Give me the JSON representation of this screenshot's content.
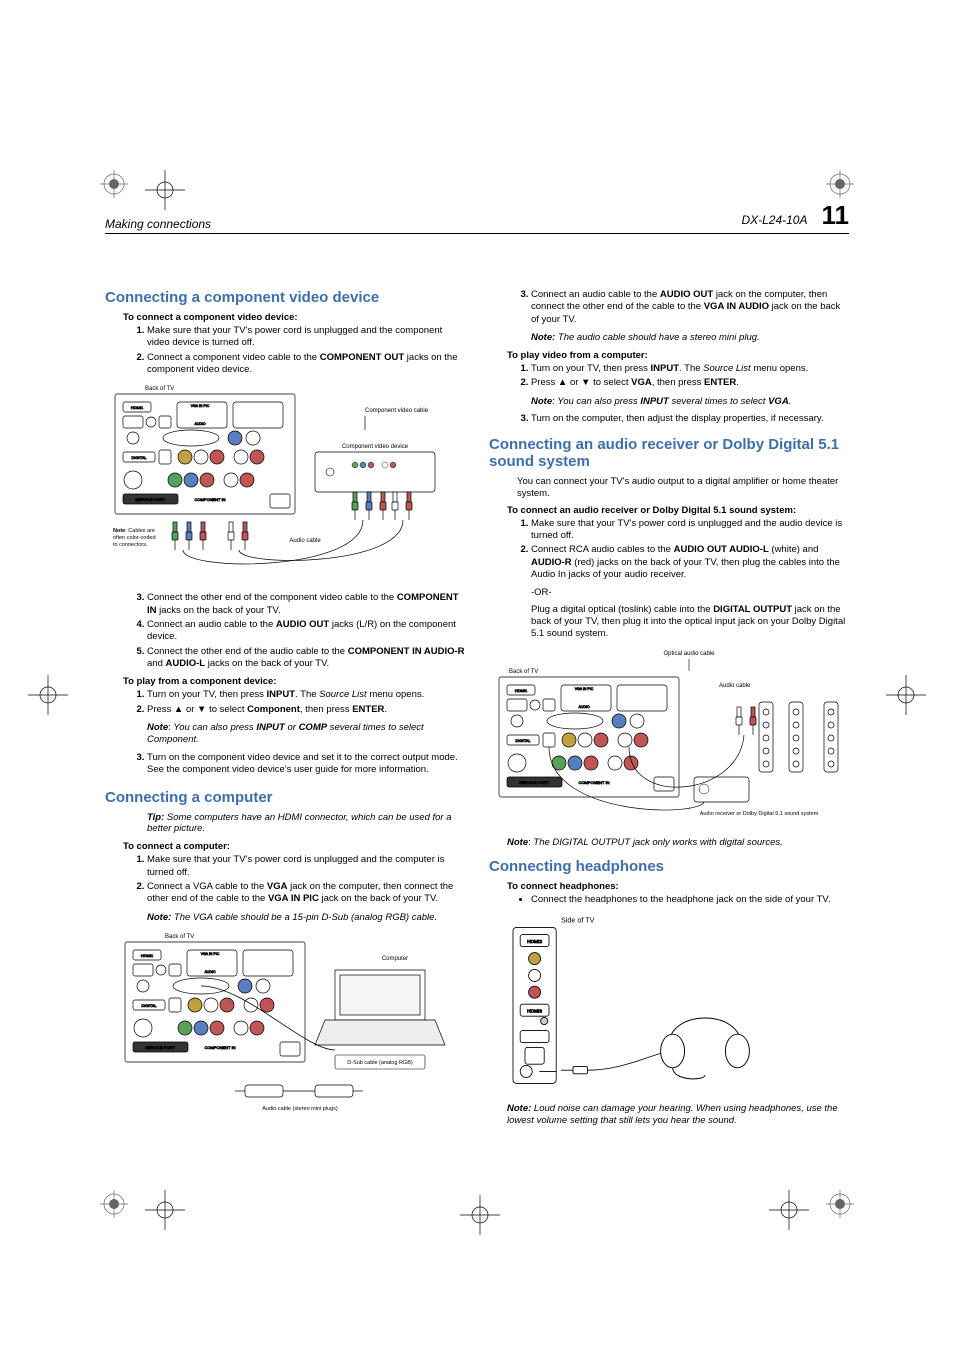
{
  "header": {
    "left": "Making connections",
    "model": "DX-L24-10A",
    "page": "11"
  },
  "left": {
    "h_component": "Connecting a component video device",
    "lead_component": "To connect a component video device:",
    "steps1": [
      "Make sure that your TV's power cord is unplugged and the component video device is turned off.",
      "Connect a component video cable to the <b>COMPONENT OUT</b> jacks on the component video device."
    ],
    "fig1_labels": {
      "back": "Back of TV",
      "cable": "Component video cable",
      "device": "Component video device",
      "note": "Note: Cables are often color-coded to connectors.",
      "audio": "Audio cable"
    },
    "steps2": [
      "Connect the other end of the component video cable to the <b>COMPONENT IN</b> jacks on the back of your TV.",
      "Connect an audio cable to the <b>AUDIO OUT</b> jacks (L/R) on the component device.",
      "Connect the other end of the audio cable to the <b>COMPONENT IN AUDIO-R</b> and <b>AUDIO-L</b> jacks on the back of your TV."
    ],
    "lead_play": "To play from a component device:",
    "steps3": [
      "Turn on your TV, then press <b>INPUT</b>. The <i>Source List</i> menu opens.",
      "Press ▲ or ▼ to select <b>Component</b>, then press <b>ENTER</b>."
    ],
    "note_comp": "You can also press <b>INPUT</b> or <b>COMP</b> several times to select Component.",
    "steps3b": [
      "Turn on the component video device and set it to the correct output mode. See the component video device's user guide for more information."
    ],
    "h_computer": "Connecting a computer",
    "tip_computer": "Some computers have an HDMI connector, which can be used for a better picture.",
    "lead_computer": "To connect a computer:",
    "steps4": [
      "Make sure that your TV's power cord is unplugged and the computer is turned off.",
      "Connect a VGA cable to the <b>VGA</b> jack on the computer, then connect the other end of the cable to the <b>VGA IN PIC</b> jack on the back of your TV."
    ],
    "note_vga": "The VGA cable should be a 15-pin D-Sub (analog RGB) cable.",
    "fig2_labels": {
      "back": "Back of TV",
      "computer": "Computer",
      "dsub": "D-Sub cable (analog RGB)",
      "audio": "Audio cable (stereo mini plugs)"
    }
  },
  "right": {
    "steps_top": [
      "Connect an audio cable to the <b>AUDIO OUT</b> jack on the computer, then connect the other end of the cable to the <b>VGA IN AUDIO</b> jack on the back of your TV."
    ],
    "note_audio": "The audio cable should have a stereo mini plug.",
    "lead_play_comp": "To play video from a computer:",
    "steps_play": [
      "Turn on your TV, then press <b>INPUT</b>. The <i>Source List</i> menu opens.",
      "Press ▲ or ▼ to select <b>VGA</b>, then press <b>ENTER</b>."
    ],
    "note_vga_sel": "You can also press <b>INPUT</b> several times to select <b>VGA</b>.",
    "steps_play2": [
      "Turn on the computer, then adjust the display properties, if necessary."
    ],
    "h_dolby": "Connecting an audio receiver or Dolby Digital 5.1 sound system",
    "para_dolby": "You can connect your TV's audio output to a digital amplifier or home theater system.",
    "lead_dolby": "To connect an audio receiver or Dolby Digital 5.1 sound system:",
    "steps_dolby": [
      "Make sure that your TV's power cord is unplugged and the audio device is turned off.",
      "Connect RCA audio cables to the <b>AUDIO OUT AUDIO-L</b> (white) and <b>AUDIO-R</b> (red) jacks on the back of your TV, then plug the cables into the Audio In jacks of your audio receiver."
    ],
    "or": "-OR-",
    "para_optical": "Plug a digital optical (toslink) cable into the <b>DIGITAL OUTPUT</b> jack on the back of your TV, then plug it into the optical input jack on your Dolby Digital 5.1 sound system.",
    "fig3_labels": {
      "optical": "Optical audio cable",
      "back": "Back of TV",
      "audio": "Audio cable",
      "receiver": "Audio receiver or Dolby Digital 5.1 sound system"
    },
    "note_digital": "The DIGITAL OUTPUT jack only works with digital sources.",
    "h_headphones": "Connecting headphones",
    "lead_headphones": "To connect headphones:",
    "bullet_headphones": "Connect the headphones to the headphone jack on the side of your TV.",
    "fig4_labels": {
      "side": "Side of TV"
    },
    "note_headphones": "Loud noise can damage your hearing. When using headphones, use the lowest volume setting that still lets you hear the sound."
  },
  "colors": {
    "heading": "#3b6fb0",
    "port_blue": "#5a7fbf",
    "port_green": "#5aa05a",
    "port_red": "#c05555",
    "port_yellow": "#c0a040",
    "gray": "#888888"
  }
}
